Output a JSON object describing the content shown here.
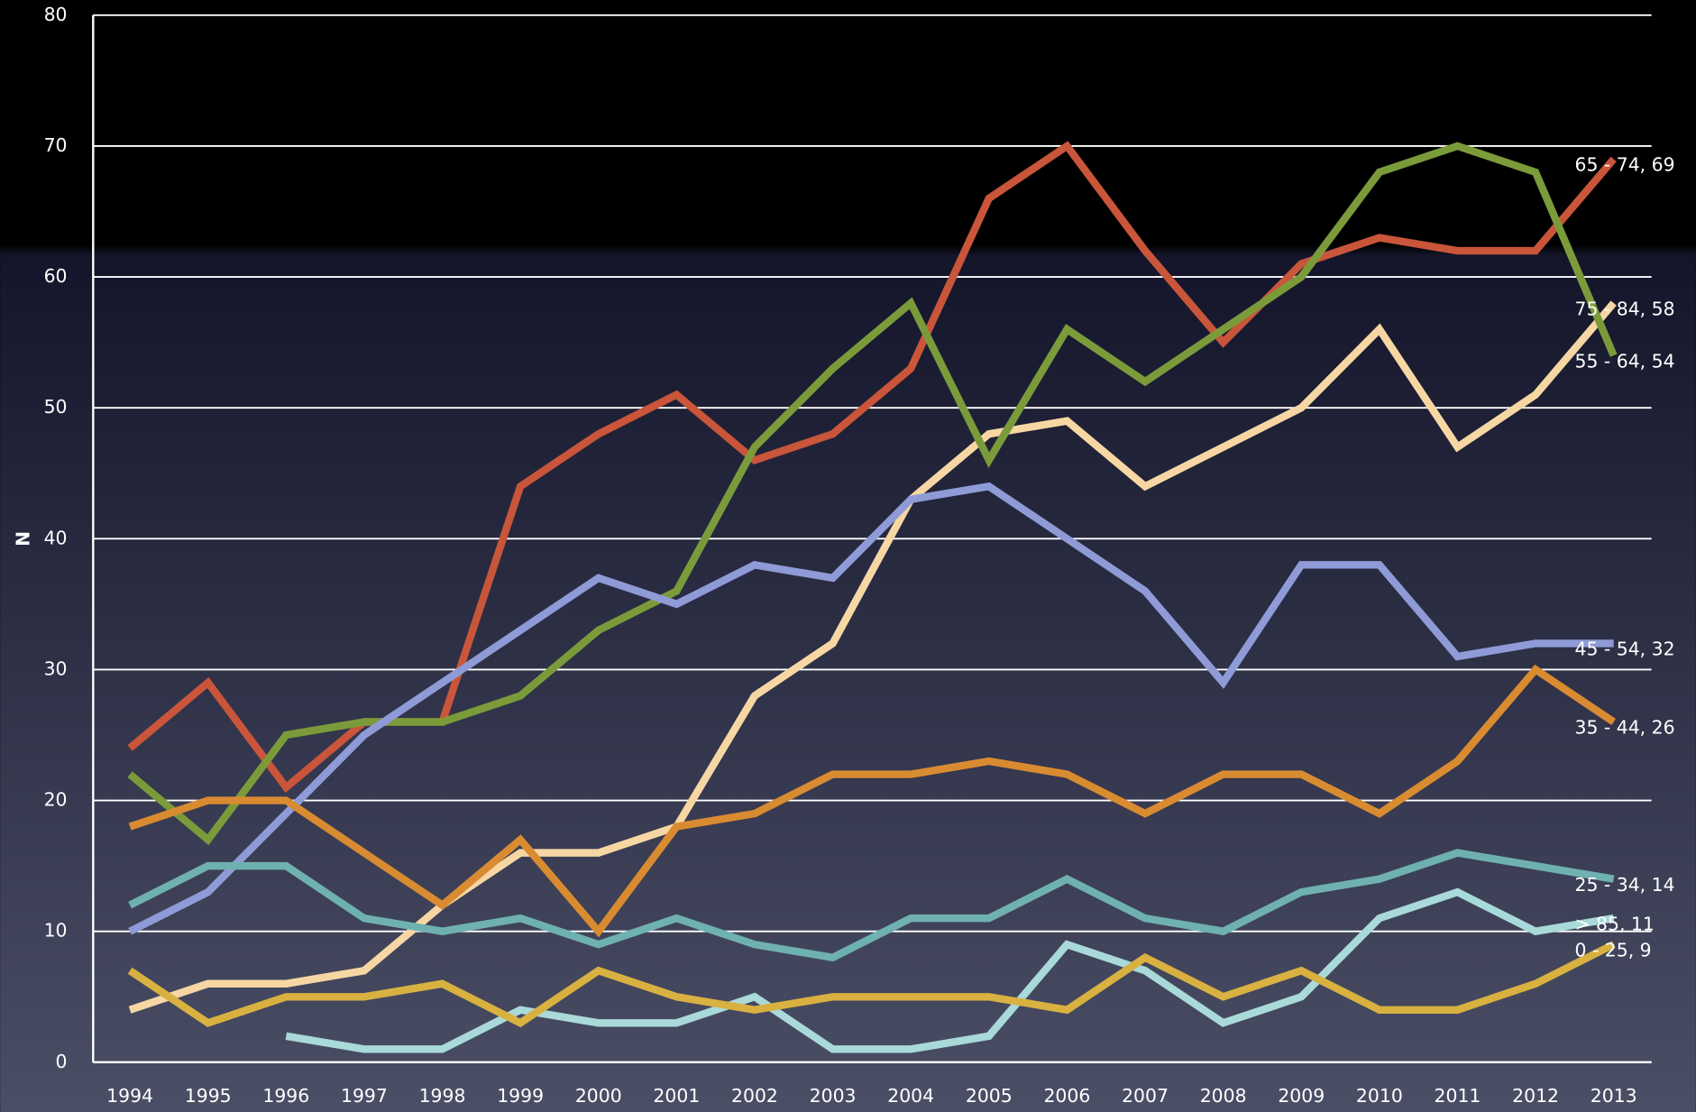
{
  "chart_data": {
    "type": "line",
    "y_label": "N",
    "categories": [
      "1994",
      "1995",
      "1996",
      "1997",
      "1998",
      "1999",
      "2000",
      "2001",
      "2002",
      "2003",
      "2004",
      "2005",
      "2006",
      "2007",
      "2008",
      "2009",
      "2010",
      "2011",
      "2012",
      "2013"
    ],
    "ylim": [
      0,
      80
    ],
    "yticks": [
      0,
      10,
      20,
      30,
      40,
      50,
      60,
      70,
      80
    ],
    "grid": true,
    "series": [
      {
        "name": "65 - 74",
        "label": "65 - 74, 69",
        "color": "#c9553a",
        "values": [
          24,
          29,
          21,
          26,
          26,
          44,
          48,
          51,
          46,
          48,
          53,
          66,
          70,
          62,
          55,
          61,
          63,
          62,
          62,
          69
        ]
      },
      {
        "name": "75 - 84",
        "label": "75 - 84, 58",
        "color": "#f6d7a3",
        "values": [
          4,
          6,
          6,
          7,
          12,
          16,
          16,
          18,
          28,
          32,
          43,
          48,
          49,
          44,
          47,
          50,
          56,
          47,
          51,
          58
        ]
      },
      {
        "name": "55 - 64",
        "label": "55 - 64, 54",
        "color": "#7b9b3b",
        "values": [
          22,
          17,
          25,
          26,
          26,
          28,
          33,
          36,
          47,
          53,
          58,
          46,
          56,
          52,
          56,
          60,
          68,
          70,
          68,
          54
        ]
      },
      {
        "name": "45 - 54",
        "label": "45 - 54, 32",
        "color": "#8f9bd7",
        "values": [
          10,
          13,
          19,
          25,
          29,
          33,
          37,
          35,
          38,
          37,
          43,
          44,
          40,
          36,
          29,
          38,
          38,
          31,
          32,
          32
        ]
      },
      {
        "name": "35 - 44",
        "label": "35 - 44, 26",
        "color": "#d98b31",
        "values": [
          18,
          20,
          20,
          16,
          12,
          17,
          10,
          18,
          19,
          22,
          22,
          23,
          22,
          19,
          22,
          22,
          19,
          23,
          30,
          26
        ]
      },
      {
        "name": "25 - 34",
        "label": "25 - 34, 14",
        "color": "#6fb1b1",
        "values": [
          12,
          15,
          15,
          11,
          10,
          11,
          9,
          11,
          9,
          8,
          11,
          11,
          14,
          11,
          10,
          13,
          14,
          16,
          15,
          14
        ]
      },
      {
        "name": "> 85",
        "label": "> 85, 11",
        "color": "#a9d9d9",
        "values": [
          null,
          null,
          2,
          1,
          1,
          4,
          3,
          3,
          5,
          1,
          1,
          2,
          9,
          7,
          3,
          5,
          11,
          13,
          10,
          11
        ]
      },
      {
        "name": "0 - 25",
        "label": "0 - 25, 9",
        "color": "#d9b141",
        "values": [
          7,
          3,
          5,
          5,
          6,
          3,
          7,
          5,
          4,
          5,
          5,
          5,
          4,
          8,
          5,
          7,
          4,
          4,
          6,
          9
        ]
      }
    ]
  }
}
